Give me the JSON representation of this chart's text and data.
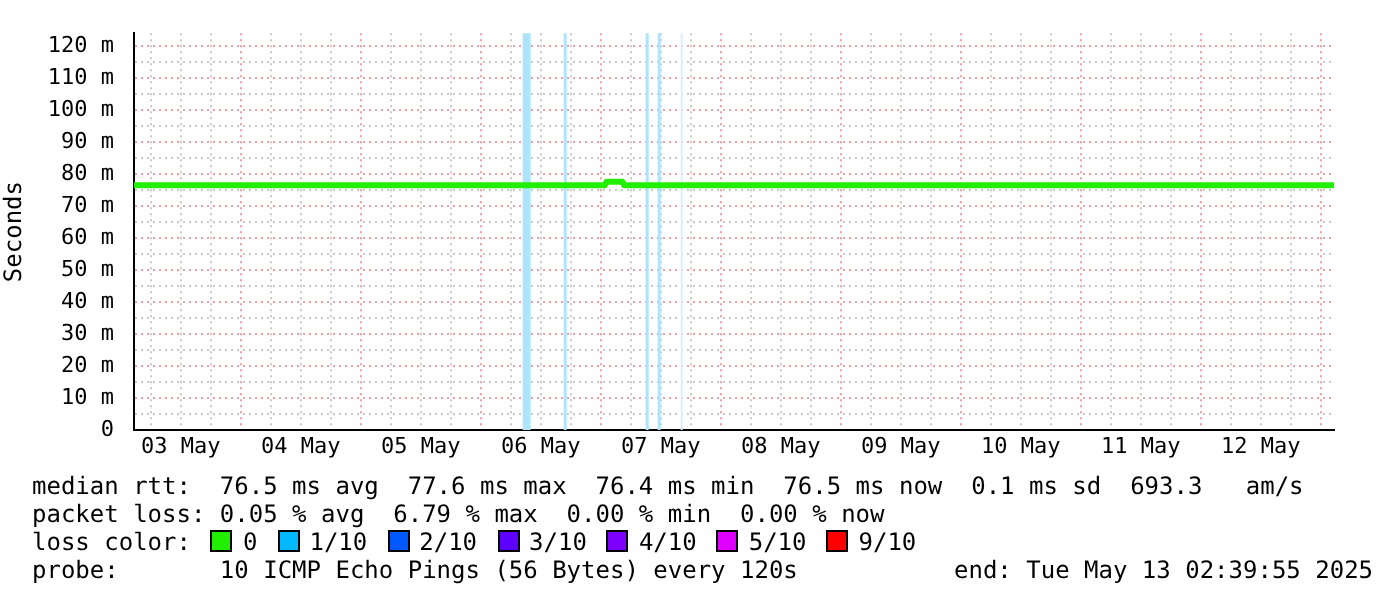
{
  "chart_data": {
    "type": "line",
    "ylabel": "Seconds",
    "legend_title": "loss color:",
    "legend": "bottom",
    "grid": true,
    "marker": "none",
    "line_style": "solid",
    "xlim": [
      "2025-05-03T02:40",
      "2025-05-13T02:40"
    ],
    "xticks": [
      {
        "value": "2025-05-03T06:00",
        "label": null
      },
      {
        "value": "2025-05-03T12:00",
        "label": "03 May"
      },
      {
        "value": "2025-05-03T18:00",
        "label": null
      },
      {
        "value": "2025-05-04T00:00",
        "label": null
      },
      {
        "value": "2025-05-04T06:00",
        "label": null
      },
      {
        "value": "2025-05-04T12:00",
        "label": "04 May"
      },
      {
        "value": "2025-05-04T18:00",
        "label": null
      },
      {
        "value": "2025-05-05T00:00",
        "label": null
      },
      {
        "value": "2025-05-05T06:00",
        "label": null
      },
      {
        "value": "2025-05-05T12:00",
        "label": "05 May"
      },
      {
        "value": "2025-05-05T18:00",
        "label": null
      },
      {
        "value": "2025-05-06T00:00",
        "label": null
      },
      {
        "value": "2025-05-06T06:00",
        "label": null
      },
      {
        "value": "2025-05-06T12:00",
        "label": "06 May"
      },
      {
        "value": "2025-05-06T18:00",
        "label": null
      },
      {
        "value": "2025-05-07T00:00",
        "label": null
      },
      {
        "value": "2025-05-07T06:00",
        "label": null
      },
      {
        "value": "2025-05-07T12:00",
        "label": "07 May"
      },
      {
        "value": "2025-05-07T18:00",
        "label": null
      },
      {
        "value": "2025-05-08T00:00",
        "label": null
      },
      {
        "value": "2025-05-08T06:00",
        "label": null
      },
      {
        "value": "2025-05-08T12:00",
        "label": "08 May"
      },
      {
        "value": "2025-05-08T18:00",
        "label": null
      },
      {
        "value": "2025-05-09T00:00",
        "label": null
      },
      {
        "value": "2025-05-09T06:00",
        "label": null
      },
      {
        "value": "2025-05-09T12:00",
        "label": "09 May"
      },
      {
        "value": "2025-05-09T18:00",
        "label": null
      },
      {
        "value": "2025-05-10T00:00",
        "label": null
      },
      {
        "value": "2025-05-10T06:00",
        "label": null
      },
      {
        "value": "2025-05-10T12:00",
        "label": "10 May"
      },
      {
        "value": "2025-05-10T18:00",
        "label": null
      },
      {
        "value": "2025-05-11T00:00",
        "label": null
      },
      {
        "value": "2025-05-11T06:00",
        "label": null
      },
      {
        "value": "2025-05-11T12:00",
        "label": "11 May"
      },
      {
        "value": "2025-05-11T18:00",
        "label": null
      },
      {
        "value": "2025-05-12T00:00",
        "label": null
      },
      {
        "value": "2025-05-12T06:00",
        "label": null
      },
      {
        "value": "2025-05-12T12:00",
        "label": "12 May"
      },
      {
        "value": "2025-05-12T18:00",
        "label": null
      },
      {
        "value": "2025-05-13T00:00",
        "label": null
      }
    ],
    "ylim": [
      0,
      124
    ],
    "yticks": [
      0,
      {
        "value": 5,
        "label": null
      },
      {
        "value": 10,
        "label": "10 m"
      },
      {
        "value": 15,
        "label": null
      },
      {
        "value": 20,
        "label": "20 m"
      },
      {
        "value": 25,
        "label": null
      },
      {
        "value": 30,
        "label": "30 m"
      },
      {
        "value": 35,
        "label": null
      },
      {
        "value": 40,
        "label": "40 m"
      },
      {
        "value": 45,
        "label": null
      },
      {
        "value": 50,
        "label": "50 m"
      },
      {
        "value": 55,
        "label": null
      },
      {
        "value": 60,
        "label": "60 m"
      },
      {
        "value": 65,
        "label": null
      },
      {
        "value": 70,
        "label": "70 m"
      },
      {
        "value": 75,
        "label": null
      },
      {
        "value": 80,
        "label": "80 m"
      },
      {
        "value": 85,
        "label": null
      },
      {
        "value": 90,
        "label": "90 m"
      },
      {
        "value": 95,
        "label": null
      },
      {
        "value": 100,
        "label": "100 m"
      },
      {
        "value": 105,
        "label": null
      },
      {
        "value": 110,
        "label": "110 m"
      },
      {
        "value": 115,
        "label": null
      },
      {
        "value": 120,
        "label": "120 m"
      }
    ],
    "series": [
      {
        "name": "0",
        "color": "#22ee00",
        "x": [
          "2025-05-03T02:40",
          "2025-05-07T00:50",
          "2025-05-07T01:10",
          "2025-05-07T04:20",
          "2025-05-07T04:40",
          "2025-05-13T02:40"
        ],
        "values": [
          76.5,
          76.5,
          77.6,
          77.6,
          76.5,
          76.5
        ]
      },
      {
        "name": "1/10",
        "color": "#00b8ff"
      },
      {
        "name": "2/10",
        "color": "#0059ff"
      },
      {
        "name": "3/10",
        "color": "#5e00ff"
      },
      {
        "name": "4/10",
        "color": "#7e00ff"
      },
      {
        "name": "5/10",
        "color": "#dd00ff"
      },
      {
        "name": "9/10",
        "color": "#ff0000"
      }
    ],
    "bands": [
      {
        "axis": "x",
        "from": "2025-05-06T08:24",
        "to": "2025-05-06T10:00",
        "color": "#aee4fb"
      },
      {
        "axis": "x",
        "from": "2025-05-06T16:36",
        "to": "2025-05-06T17:12",
        "color": "#aee4fb"
      },
      {
        "axis": "x",
        "from": "2025-05-07T09:00",
        "to": "2025-05-07T09:36",
        "color": "#aee4fb"
      },
      {
        "axis": "x",
        "from": "2025-05-07T11:24",
        "to": "2025-05-07T12:00",
        "color": "#aee4fb"
      },
      {
        "axis": "x",
        "from": "2025-05-07T16:00",
        "to": "2025-05-07T16:24",
        "color": "#d8f1fc"
      }
    ],
    "annotations": [
      "median rtt:  76.5 ms avg  77.6 ms max  76.4 ms min  76.5 ms now  0.1 ms sd  693.3   am/s",
      "packet loss: 0.05 % avg  6.79 % max  0.00 % min  0.00 % now",
      "probe:       10 ICMP Echo Pings (56 Bytes) every 120s",
      "end: Tue May 13 02:39:55 2025"
    ]
  }
}
